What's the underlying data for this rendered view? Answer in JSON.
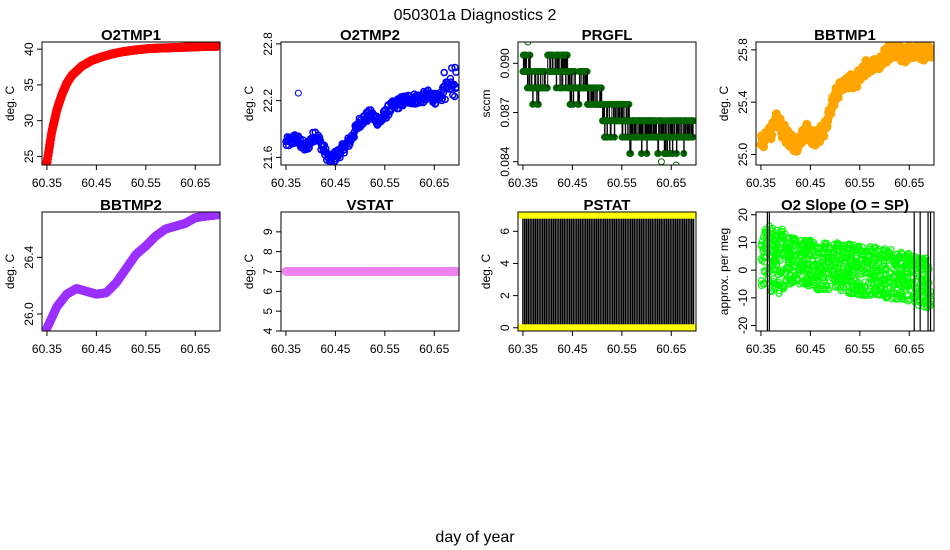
{
  "figure": {
    "title": "050301a   Diagnostics 2",
    "xlabel": "day of year"
  },
  "chart_data": [
    {
      "type": "line",
      "title": "O2TMP1",
      "ylabel": "deg. C",
      "color": "#ff0000",
      "xlim": [
        60.34,
        60.7
      ],
      "ylim": [
        23.8,
        41.0
      ],
      "xticks": [
        60.35,
        60.45,
        60.55,
        60.65
      ],
      "xtick_labels": [
        "60.35",
        "60.45",
        "60.55",
        "60.65"
      ],
      "yticks": [
        25,
        30,
        35,
        40
      ],
      "ytick_labels": [
        "25",
        "30",
        "35",
        "40"
      ],
      "series": [
        {
          "name": "O2TMP1",
          "x": [
            60.35,
            60.36,
            60.37,
            60.38,
            60.39,
            60.4,
            60.42,
            60.44,
            60.46,
            60.48,
            60.5,
            60.53,
            60.56,
            60.6,
            60.64,
            60.68,
            60.695
          ],
          "y": [
            24.2,
            28.5,
            31.5,
            33.6,
            35.2,
            36.3,
            37.6,
            38.4,
            38.9,
            39.3,
            39.6,
            39.9,
            40.1,
            40.2,
            40.3,
            40.4,
            40.4
          ]
        }
      ]
    },
    {
      "type": "scatter",
      "title": "O2TMP2",
      "ylabel": "deg. C",
      "color": "#0000ff",
      "xlim": [
        60.34,
        60.7
      ],
      "ylim": [
        21.52,
        22.82
      ],
      "xticks": [
        60.35,
        60.45,
        60.55,
        60.65
      ],
      "xtick_labels": [
        "60.35",
        "60.45",
        "60.55",
        "60.65"
      ],
      "yticks": [
        21.6,
        22.2,
        22.8
      ],
      "ytick_labels": [
        "21.6",
        "22.2",
        "22.8"
      ],
      "series": [
        {
          "name": "O2TMP2",
          "x": [
            60.35,
            60.37,
            60.39,
            60.41,
            60.43,
            60.44,
            60.46,
            60.48,
            60.5,
            60.52,
            60.54,
            60.56,
            60.58,
            60.6,
            60.62,
            60.64,
            60.66,
            60.68,
            60.695
          ],
          "y": [
            21.75,
            21.8,
            21.7,
            21.85,
            21.65,
            21.57,
            21.66,
            21.78,
            21.98,
            22.05,
            21.98,
            22.12,
            22.18,
            22.22,
            22.22,
            22.26,
            22.2,
            22.42,
            22.36
          ]
        }
      ]
    },
    {
      "type": "step",
      "title": "PRGFL",
      "ylabel": "sccm",
      "color": "#006400",
      "xlim": [
        60.34,
        60.7
      ],
      "ylim": [
        0.0838,
        0.0913
      ],
      "xticks": [
        60.35,
        60.45,
        60.55,
        60.65
      ],
      "xtick_labels": [
        "60.35",
        "60.45",
        "60.55",
        "60.65"
      ],
      "yticks": [
        0.084,
        0.087,
        0.09
      ],
      "ytick_labels": [
        "0.084",
        "0.087",
        "0.090"
      ],
      "series": [
        {
          "name": "PRGFL",
          "levels": [
            0.0905,
            0.0895,
            0.0885,
            0.0875,
            0.0865,
            0.0855,
            0.0845
          ],
          "x": [
            60.35,
            60.38,
            60.42,
            60.46,
            60.5,
            60.52,
            60.55,
            60.58,
            60.62,
            60.65,
            60.695
          ],
          "y": [
            0.0895,
            0.0885,
            0.0895,
            0.0885,
            0.0875,
            0.0865,
            0.0865,
            0.0855,
            0.0855,
            0.0855,
            0.0855
          ]
        }
      ]
    },
    {
      "type": "line",
      "title": "BBTMP1",
      "ylabel": "deg. C",
      "color": "#ffa500",
      "xlim": [
        60.34,
        60.7
      ],
      "ylim": [
        24.92,
        25.86
      ],
      "xticks": [
        60.35,
        60.45,
        60.55,
        60.65
      ],
      "xtick_labels": [
        "60.35",
        "60.45",
        "60.55",
        "60.65"
      ],
      "yticks": [
        25.0,
        25.4,
        25.8
      ],
      "ytick_labels": [
        "25.0",
        "25.4",
        "25.8"
      ],
      "series": [
        {
          "name": "BBTMP1",
          "x": [
            60.35,
            60.37,
            60.38,
            60.4,
            60.42,
            60.44,
            60.46,
            60.48,
            60.5,
            60.52,
            60.54,
            60.56,
            60.58,
            60.6,
            60.62,
            60.64,
            60.66,
            60.68,
            60.695
          ],
          "y": [
            25.1,
            25.18,
            25.28,
            25.15,
            25.05,
            25.18,
            25.12,
            25.2,
            25.45,
            25.55,
            25.55,
            25.65,
            25.68,
            25.74,
            25.8,
            25.76,
            25.8,
            25.78,
            25.8
          ]
        }
      ]
    },
    {
      "type": "line",
      "title": "BBTMP2",
      "ylabel": "deg. C",
      "color": "#9b30ff",
      "xlim": [
        60.34,
        60.7
      ],
      "ylim": [
        25.88,
        26.72
      ],
      "xticks": [
        60.35,
        60.45,
        60.55,
        60.65
      ],
      "xtick_labels": [
        "60.35",
        "60.45",
        "60.55",
        "60.65"
      ],
      "yticks": [
        26.0,
        26.4
      ],
      "ytick_labels": [
        "26.0",
        "26.4"
      ],
      "series": [
        {
          "name": "BBTMP2",
          "x": [
            60.35,
            60.37,
            60.39,
            60.41,
            60.43,
            60.45,
            60.47,
            60.49,
            60.51,
            60.53,
            60.55,
            60.57,
            60.59,
            60.61,
            60.63,
            60.65,
            60.67,
            60.695
          ],
          "y": [
            25.9,
            26.05,
            26.14,
            26.18,
            26.16,
            26.14,
            26.15,
            26.22,
            26.32,
            26.42,
            26.48,
            26.55,
            26.6,
            26.62,
            26.64,
            26.68,
            26.69,
            26.7
          ]
        }
      ]
    },
    {
      "type": "line",
      "title": "VSTAT",
      "ylabel": "deg. C",
      "color": "#ee82ee",
      "xlim": [
        60.34,
        60.7
      ],
      "ylim": [
        4,
        10
      ],
      "xticks": [
        60.35,
        60.45,
        60.55,
        60.65
      ],
      "xtick_labels": [
        "60.35",
        "60.45",
        "60.55",
        "60.65"
      ],
      "yticks": [
        4,
        5,
        6,
        7,
        8,
        9
      ],
      "ytick_labels": [
        "4",
        "5",
        "6",
        "7",
        "8",
        "9"
      ],
      "series": [
        {
          "name": "VSTAT",
          "x": [
            60.35,
            60.695
          ],
          "y": [
            7,
            7
          ]
        }
      ]
    },
    {
      "type": "line",
      "title": "PSTAT",
      "ylabel": "deg. C",
      "color": "#ffff00",
      "xlim": [
        60.34,
        60.7
      ],
      "ylim": [
        -0.2,
        7.2
      ],
      "xticks": [
        60.35,
        60.45,
        60.55,
        60.65
      ],
      "xtick_labels": [
        "60.35",
        "60.45",
        "60.55",
        "60.65"
      ],
      "yticks": [
        0,
        2,
        4,
        6
      ],
      "ytick_labels": [
        "0",
        "2",
        "4",
        "6"
      ],
      "series": [
        {
          "name": "PSTAT",
          "levels": [
            0,
            7
          ],
          "x": [
            60.35,
            60.695
          ],
          "y": [
            7,
            0
          ]
        }
      ]
    },
    {
      "type": "scatter",
      "title": "O2 Slope (O = SP)",
      "ylabel": "approx. per meg",
      "color": "#00ff00",
      "xlim": [
        60.34,
        60.7
      ],
      "ylim": [
        -22,
        21
      ],
      "xticks": [
        60.35,
        60.45,
        60.55,
        60.65
      ],
      "xtick_labels": [
        "60.35",
        "60.45",
        "60.55",
        "60.65"
      ],
      "yticks": [
        -20,
        -10,
        0,
        10,
        20
      ],
      "ytick_labels": [
        "-20",
        "-10",
        "0",
        "10",
        "20"
      ],
      "series": [
        {
          "name": "O2 Slope",
          "x": [
            60.35,
            60.4,
            60.45,
            60.5,
            60.55,
            60.6,
            60.65,
            60.695
          ],
          "y": [
            5,
            3,
            2,
            1,
            0,
            -1,
            -3,
            -5
          ]
        }
      ]
    }
  ]
}
